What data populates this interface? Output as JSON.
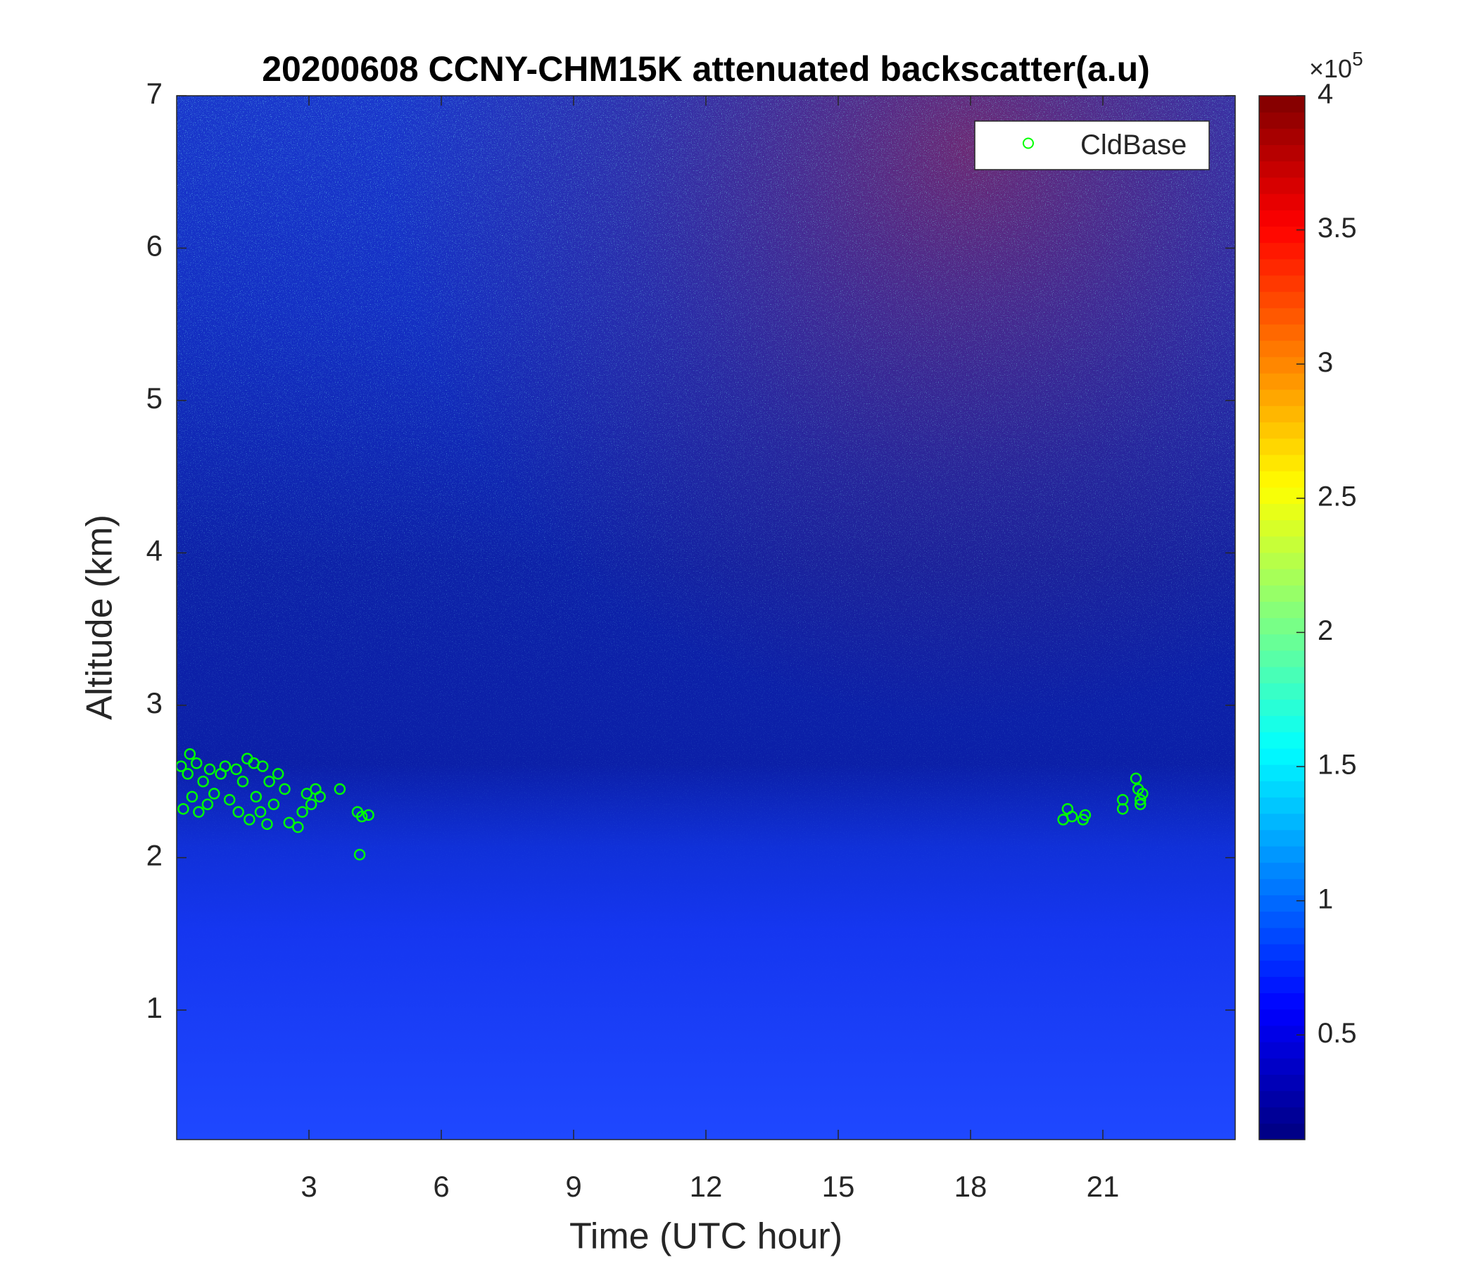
{
  "chart_data": {
    "type": "heatmap",
    "title": "20200608 CCNY-CHM15K attenuated backscatter(a.u)",
    "xlabel": "Time (UTC hour)",
    "ylabel": "Altitude (km)",
    "xlim": [
      0,
      24
    ],
    "xticks": [
      3,
      6,
      9,
      12,
      15,
      18,
      21
    ],
    "ylim": [
      0.15,
      7
    ],
    "yticks": [
      1,
      2,
      3,
      4,
      5,
      6,
      7
    ],
    "legend_location": "northeast",
    "colorbar": {
      "colormap": "jet",
      "clim": [
        0.11,
        4
      ],
      "ticks": [
        0.5,
        1,
        1.5,
        2,
        2.5,
        3,
        3.5,
        4
      ],
      "label_base": "×10",
      "label_exponent": "5"
    },
    "series": [
      {
        "name": "CldBase",
        "type": "scatter",
        "marker": "hollow-circle",
        "color": "#00ff00",
        "x": [
          0.1,
          0.15,
          0.25,
          0.3,
          0.35,
          0.45,
          0.5,
          0.6,
          0.7,
          0.75,
          0.85,
          1.0,
          1.1,
          1.2,
          1.35,
          1.4,
          1.5,
          1.6,
          1.65,
          1.75,
          1.8,
          1.9,
          1.95,
          2.05,
          2.1,
          2.2,
          2.3,
          2.45,
          2.55,
          2.75,
          2.85,
          2.95,
          3.05,
          3.15,
          3.25,
          3.7,
          4.1,
          4.2,
          4.35,
          4.15,
          20.1,
          20.2,
          20.3,
          20.55,
          20.6,
          21.45,
          21.45,
          21.75,
          21.8,
          21.85,
          21.9,
          21.85
        ],
        "y": [
          2.6,
          2.32,
          2.55,
          2.68,
          2.4,
          2.62,
          2.3,
          2.5,
          2.35,
          2.58,
          2.42,
          2.55,
          2.6,
          2.38,
          2.58,
          2.3,
          2.5,
          2.65,
          2.25,
          2.62,
          2.4,
          2.3,
          2.6,
          2.22,
          2.5,
          2.35,
          2.55,
          2.45,
          2.23,
          2.2,
          2.3,
          2.42,
          2.35,
          2.45,
          2.4,
          2.45,
          2.3,
          2.27,
          2.28,
          2.02,
          2.25,
          2.32,
          2.27,
          2.25,
          2.28,
          2.32,
          2.38,
          2.52,
          2.45,
          2.38,
          2.42,
          2.35
        ]
      }
    ]
  }
}
